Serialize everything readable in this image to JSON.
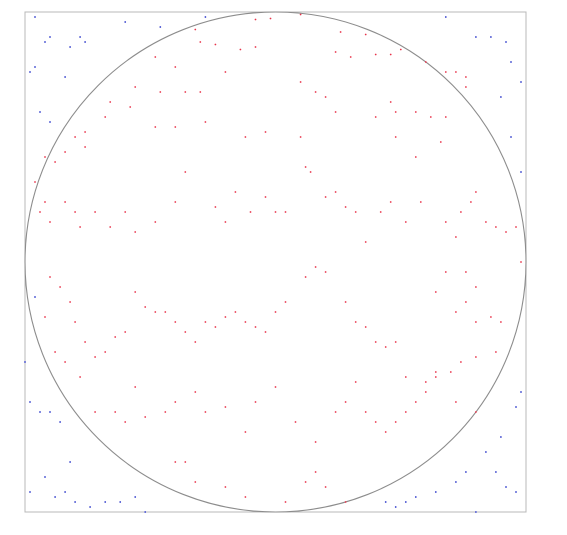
{
  "chart_data": {
    "type": "scatter",
    "title": "",
    "xlabel": "",
    "ylabel": "",
    "xlim": [
      0,
      1
    ],
    "ylim": [
      0,
      1
    ],
    "grid": false,
    "legend": "none",
    "overlay": {
      "shape": "circle",
      "center": [
        0.5,
        0.5
      ],
      "radius": 0.5,
      "color": "#8c8c8c"
    },
    "series": [
      {
        "color": "#e8334a",
        "points": [
          [
            0.46,
            0.985
          ],
          [
            0.49,
            0.987
          ],
          [
            0.55,
            0.995
          ],
          [
            0.63,
            0.96
          ],
          [
            0.68,
            0.955
          ],
          [
            0.34,
            0.965
          ],
          [
            0.35,
            0.94
          ],
          [
            0.38,
            0.935
          ],
          [
            0.43,
            0.925
          ],
          [
            0.46,
            0.93
          ],
          [
            0.62,
            0.92
          ],
          [
            0.65,
            0.91
          ],
          [
            0.7,
            0.915
          ],
          [
            0.73,
            0.915
          ],
          [
            0.75,
            0.925
          ],
          [
            0.8,
            0.9
          ],
          [
            0.84,
            0.88
          ],
          [
            0.86,
            0.88
          ],
          [
            0.88,
            0.87
          ],
          [
            0.26,
            0.91
          ],
          [
            0.3,
            0.89
          ],
          [
            0.4,
            0.88
          ],
          [
            0.22,
            0.85
          ],
          [
            0.27,
            0.84
          ],
          [
            0.32,
            0.84
          ],
          [
            0.35,
            0.84
          ],
          [
            0.55,
            0.86
          ],
          [
            0.58,
            0.84
          ],
          [
            0.6,
            0.83
          ],
          [
            0.73,
            0.82
          ],
          [
            0.74,
            0.8
          ],
          [
            0.78,
            0.8
          ],
          [
            0.81,
            0.79
          ],
          [
            0.84,
            0.79
          ],
          [
            0.88,
            0.85
          ],
          [
            0.83,
            0.74
          ],
          [
            0.78,
            0.71
          ],
          [
            0.74,
            0.75
          ],
          [
            0.7,
            0.79
          ],
          [
            0.62,
            0.8
          ],
          [
            0.55,
            0.75
          ],
          [
            0.48,
            0.76
          ],
          [
            0.44,
            0.75
          ],
          [
            0.36,
            0.78
          ],
          [
            0.3,
            0.77
          ],
          [
            0.26,
            0.77
          ],
          [
            0.21,
            0.81
          ],
          [
            0.17,
            0.82
          ],
          [
            0.16,
            0.79
          ],
          [
            0.12,
            0.76
          ],
          [
            0.1,
            0.75
          ],
          [
            0.12,
            0.73
          ],
          [
            0.08,
            0.72
          ],
          [
            0.06,
            0.7
          ],
          [
            0.04,
            0.71
          ],
          [
            0.02,
            0.66
          ],
          [
            0.03,
            0.6
          ],
          [
            0.04,
            0.62
          ],
          [
            0.05,
            0.58
          ],
          [
            0.08,
            0.62
          ],
          [
            0.1,
            0.6
          ],
          [
            0.11,
            0.57
          ],
          [
            0.14,
            0.6
          ],
          [
            0.17,
            0.57
          ],
          [
            0.2,
            0.6
          ],
          [
            0.22,
            0.56
          ],
          [
            0.26,
            0.58
          ],
          [
            0.3,
            0.62
          ],
          [
            0.32,
            0.68
          ],
          [
            0.38,
            0.61
          ],
          [
            0.4,
            0.58
          ],
          [
            0.42,
            0.64
          ],
          [
            0.45,
            0.6
          ],
          [
            0.48,
            0.63
          ],
          [
            0.5,
            0.6
          ],
          [
            0.52,
            0.6
          ],
          [
            0.56,
            0.69
          ],
          [
            0.57,
            0.68
          ],
          [
            0.6,
            0.63
          ],
          [
            0.62,
            0.64
          ],
          [
            0.64,
            0.61
          ],
          [
            0.66,
            0.6
          ],
          [
            0.68,
            0.54
          ],
          [
            0.71,
            0.6
          ],
          [
            0.73,
            0.62
          ],
          [
            0.76,
            0.58
          ],
          [
            0.79,
            0.62
          ],
          [
            0.84,
            0.58
          ],
          [
            0.87,
            0.6
          ],
          [
            0.89,
            0.62
          ],
          [
            0.9,
            0.64
          ],
          [
            0.92,
            0.58
          ],
          [
            0.94,
            0.57
          ],
          [
            0.96,
            0.56
          ],
          [
            0.98,
            0.57
          ],
          [
            0.99,
            0.5
          ],
          [
            0.86,
            0.55
          ],
          [
            0.84,
            0.48
          ],
          [
            0.82,
            0.44
          ],
          [
            0.88,
            0.48
          ],
          [
            0.9,
            0.45
          ],
          [
            0.88,
            0.42
          ],
          [
            0.86,
            0.4
          ],
          [
            0.9,
            0.38
          ],
          [
            0.93,
            0.39
          ],
          [
            0.95,
            0.38
          ],
          [
            0.94,
            0.32
          ],
          [
            0.9,
            0.31
          ],
          [
            0.87,
            0.3
          ],
          [
            0.85,
            0.28
          ],
          [
            0.82,
            0.27
          ],
          [
            0.8,
            0.26
          ],
          [
            0.76,
            0.27
          ],
          [
            0.74,
            0.34
          ],
          [
            0.72,
            0.33
          ],
          [
            0.7,
            0.34
          ],
          [
            0.68,
            0.37
          ],
          [
            0.66,
            0.38
          ],
          [
            0.64,
            0.42
          ],
          [
            0.6,
            0.48
          ],
          [
            0.58,
            0.49
          ],
          [
            0.56,
            0.47
          ],
          [
            0.52,
            0.42
          ],
          [
            0.5,
            0.4
          ],
          [
            0.48,
            0.36
          ],
          [
            0.46,
            0.37
          ],
          [
            0.44,
            0.38
          ],
          [
            0.42,
            0.4
          ],
          [
            0.4,
            0.39
          ],
          [
            0.38,
            0.37
          ],
          [
            0.36,
            0.38
          ],
          [
            0.34,
            0.34
          ],
          [
            0.32,
            0.36
          ],
          [
            0.3,
            0.38
          ],
          [
            0.28,
            0.4
          ],
          [
            0.26,
            0.4
          ],
          [
            0.24,
            0.41
          ],
          [
            0.22,
            0.44
          ],
          [
            0.2,
            0.36
          ],
          [
            0.18,
            0.35
          ],
          [
            0.16,
            0.32
          ],
          [
            0.14,
            0.31
          ],
          [
            0.12,
            0.34
          ],
          [
            0.1,
            0.38
          ],
          [
            0.09,
            0.42
          ],
          [
            0.07,
            0.45
          ],
          [
            0.05,
            0.47
          ],
          [
            0.04,
            0.39
          ],
          [
            0.06,
            0.32
          ],
          [
            0.08,
            0.3
          ],
          [
            0.11,
            0.27
          ],
          [
            0.14,
            0.2
          ],
          [
            0.18,
            0.2
          ],
          [
            0.2,
            0.18
          ],
          [
            0.22,
            0.25
          ],
          [
            0.24,
            0.19
          ],
          [
            0.28,
            0.2
          ],
          [
            0.3,
            0.22
          ],
          [
            0.34,
            0.24
          ],
          [
            0.36,
            0.2
          ],
          [
            0.4,
            0.21
          ],
          [
            0.44,
            0.16
          ],
          [
            0.46,
            0.22
          ],
          [
            0.5,
            0.25
          ],
          [
            0.54,
            0.18
          ],
          [
            0.58,
            0.14
          ],
          [
            0.62,
            0.2
          ],
          [
            0.64,
            0.22
          ],
          [
            0.66,
            0.26
          ],
          [
            0.68,
            0.2
          ],
          [
            0.7,
            0.18
          ],
          [
            0.72,
            0.16
          ],
          [
            0.74,
            0.18
          ],
          [
            0.76,
            0.2
          ],
          [
            0.78,
            0.22
          ],
          [
            0.8,
            0.24
          ],
          [
            0.82,
            0.28
          ],
          [
            0.86,
            0.22
          ],
          [
            0.9,
            0.2
          ],
          [
            0.58,
            0.08
          ],
          [
            0.6,
            0.05
          ],
          [
            0.64,
            0.02
          ],
          [
            0.3,
            0.1
          ],
          [
            0.32,
            0.1
          ],
          [
            0.34,
            0.06
          ],
          [
            0.56,
            0.06
          ],
          [
            0.4,
            0.05
          ],
          [
            0.44,
            0.03
          ],
          [
            0.52,
            0.02
          ]
        ]
      },
      {
        "color": "#2e3acb",
        "points": [
          [
            0.02,
            0.99
          ],
          [
            0.04,
            0.94
          ],
          [
            0.05,
            0.95
          ],
          [
            0.09,
            0.93
          ],
          [
            0.11,
            0.95
          ],
          [
            0.2,
            0.98
          ],
          [
            0.27,
            0.97
          ],
          [
            0.36,
            0.99
          ],
          [
            0.84,
            0.99
          ],
          [
            0.9,
            0.95
          ],
          [
            0.93,
            0.95
          ],
          [
            0.96,
            0.94
          ],
          [
            0.97,
            0.9
          ],
          [
            0.99,
            0.86
          ],
          [
            0.01,
            0.88
          ],
          [
            0.02,
            0.89
          ],
          [
            0.03,
            0.8
          ],
          [
            0.05,
            0.78
          ],
          [
            0.08,
            0.87
          ],
          [
            0.12,
            0.94
          ],
          [
            0.95,
            0.83
          ],
          [
            0.97,
            0.75
          ],
          [
            0.99,
            0.68
          ],
          [
            0.0,
            0.3
          ],
          [
            0.01,
            0.22
          ],
          [
            0.03,
            0.2
          ],
          [
            0.05,
            0.2
          ],
          [
            0.07,
            0.18
          ],
          [
            0.09,
            0.1
          ],
          [
            0.04,
            0.07
          ],
          [
            0.06,
            0.03
          ],
          [
            0.08,
            0.04
          ],
          [
            0.1,
            0.02
          ],
          [
            0.13,
            0.01
          ],
          [
            0.16,
            0.02
          ],
          [
            0.19,
            0.02
          ],
          [
            0.22,
            0.03
          ],
          [
            0.24,
            0.0
          ],
          [
            0.95,
            0.15
          ],
          [
            0.94,
            0.08
          ],
          [
            0.96,
            0.05
          ],
          [
            0.98,
            0.04
          ],
          [
            0.99,
            0.24
          ],
          [
            0.98,
            0.21
          ],
          [
            0.92,
            0.12
          ],
          [
            0.88,
            0.08
          ],
          [
            0.86,
            0.06
          ],
          [
            0.82,
            0.04
          ],
          [
            0.78,
            0.03
          ],
          [
            0.76,
            0.02
          ],
          [
            0.74,
            0.01
          ],
          [
            0.72,
            0.02
          ],
          [
            0.9,
            0.0
          ],
          [
            0.02,
            0.43
          ],
          [
            0.01,
            0.04
          ]
        ]
      }
    ]
  }
}
